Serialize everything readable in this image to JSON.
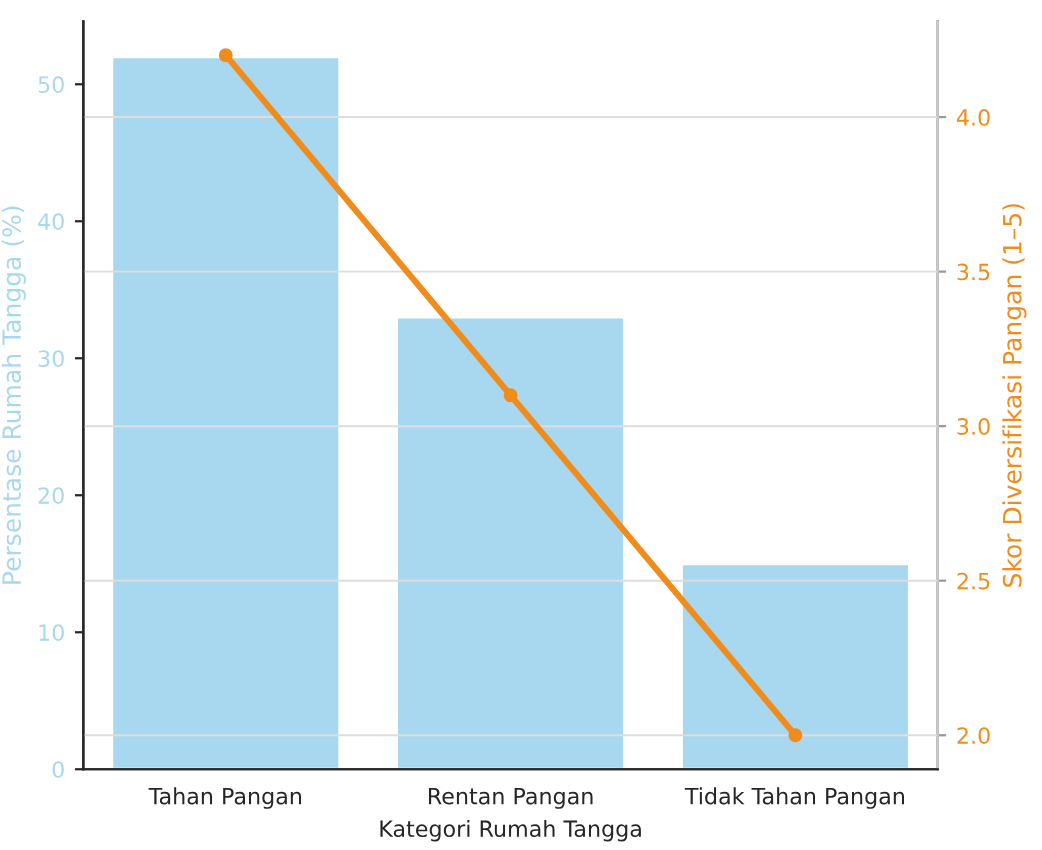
{
  "chart_data": {
    "type": "bar",
    "xlabel": "Kategori Rumah Tangga",
    "ylabel": "Persentase Rumah Tangga (%)",
    "y2label": "Skor Diversifikasi Pangan (1–5)",
    "categories": [
      "Tahan Pangan",
      "Rentan Pangan",
      "Tidak Tahan Pangan"
    ],
    "series": [
      {
        "color": "#a8d8ef",
        "values": [
          52,
          33,
          15
        ]
      },
      {
        "type": "line",
        "axis": "y2",
        "color": "#f08c1c",
        "values": [
          4.2,
          3.1,
          2.0
        ],
        "marker": "circle",
        "line_style": "solid"
      }
    ],
    "ylim": [
      0,
      54.6
    ],
    "yticks": [
      0,
      10,
      20,
      30,
      40,
      50
    ],
    "y2lim": [
      1.89,
      4.31
    ],
    "y2ticks": [
      {
        "value": 2.0,
        "label": "2.0"
      },
      {
        "value": 2.5,
        "label": "2.5"
      },
      {
        "value": 3.0,
        "label": "3.0"
      },
      {
        "value": 3.5,
        "label": "3.5"
      },
      {
        "value": 4.0,
        "label": "4.0"
      }
    ],
    "grid": "y"
  }
}
